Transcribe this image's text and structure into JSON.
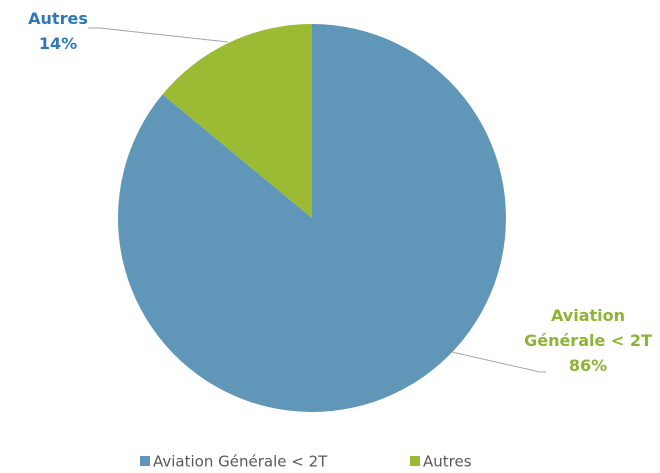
{
  "chart_data": {
    "type": "pie",
    "categories": [
      "Aviation Générale < 2T",
      "Autres"
    ],
    "values": [
      86,
      14
    ],
    "value_labels": [
      "86%",
      "14%"
    ],
    "colors": [
      "#6097b9",
      "#9bbb34"
    ],
    "label_colors": [
      "#8cb435",
      "#2f78b7"
    ],
    "legend": "bottom"
  }
}
